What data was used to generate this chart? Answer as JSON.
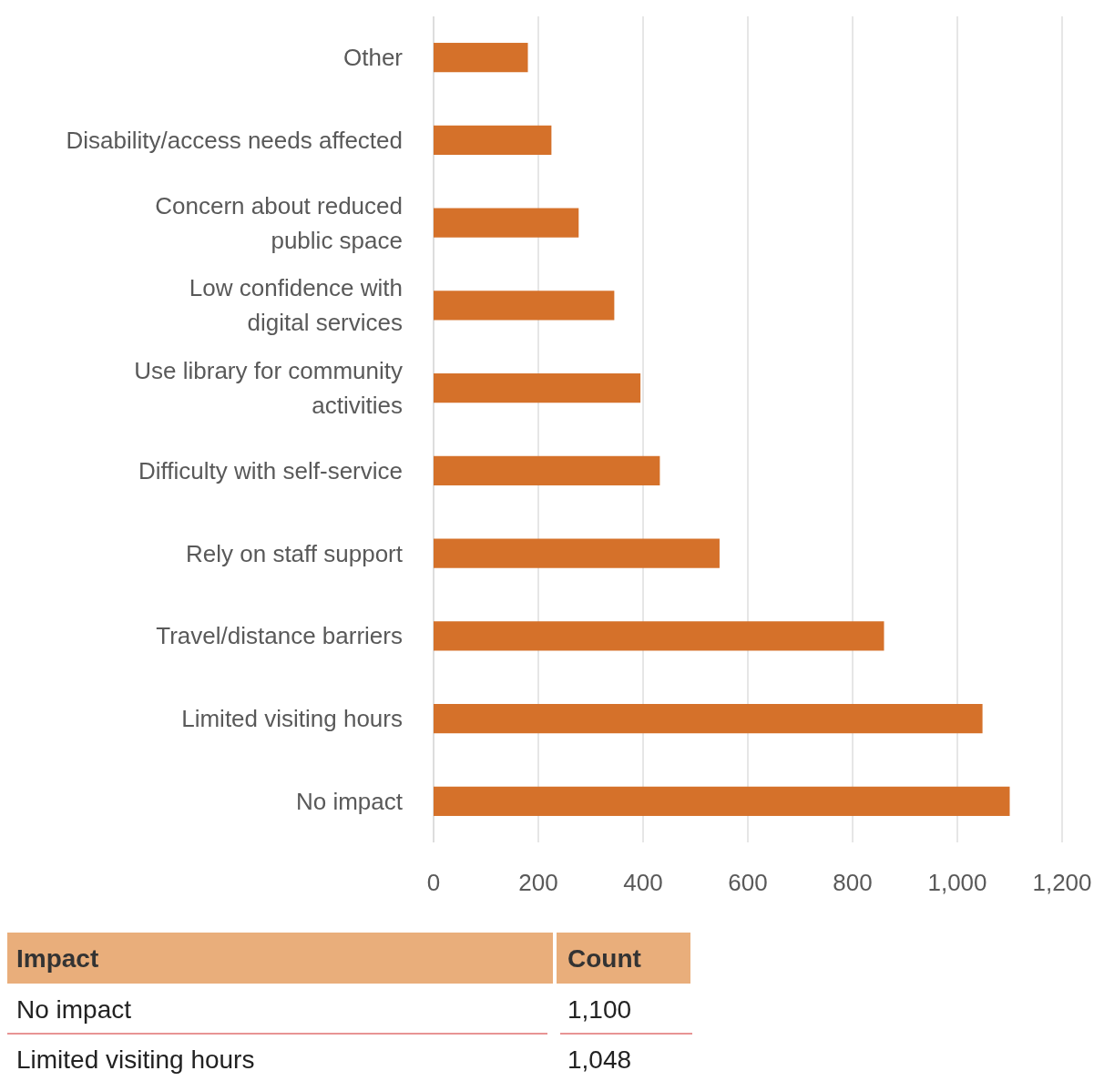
{
  "chart_data": {
    "type": "bar",
    "orientation": "horizontal",
    "categories": [
      "Other",
      "Disability/access needs affected",
      "Concern about reduced public space",
      "Low confidence with digital services",
      "Use library for community activities",
      "Difficulty with self-service",
      "Rely on staff support",
      "Travel/distance barriers",
      "Limited visiting hours",
      "No impact"
    ],
    "values": [
      180,
      225,
      277,
      345,
      395,
      432,
      546,
      860,
      1048,
      1100
    ],
    "color": "#d5712a",
    "xlim": [
      0,
      1200
    ],
    "xticks": [
      0,
      200,
      400,
      600,
      800,
      {
        "value": 1000,
        "label": "1,000"
      },
      {
        "value": 1200,
        "label": "1,200"
      }
    ],
    "grid": "x",
    "annotations": [
      "Impact",
      "Count",
      "No impact",
      "1,100",
      "Limited visiting hours",
      "1,048"
    ]
  }
}
